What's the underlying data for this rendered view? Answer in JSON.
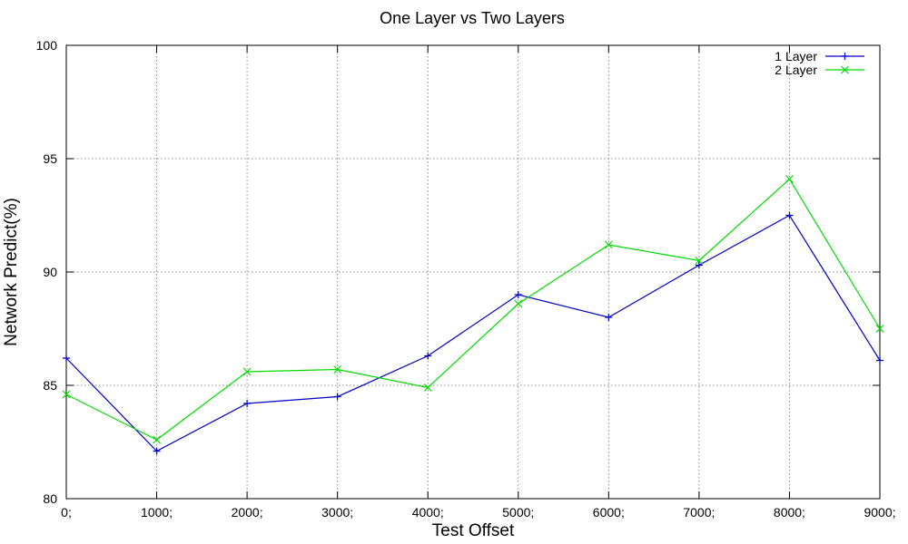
{
  "chart_data": {
    "type": "line",
    "title": "One Layer vs Two Layers",
    "xlabel": "Test Offset",
    "ylabel": "Network Predict(%)",
    "categories": [
      "0;",
      "1000;",
      "2000;",
      "3000;",
      "4000;",
      "5000;",
      "6000;",
      "7000;",
      "8000;",
      "9000;"
    ],
    "ylim": [
      80,
      100
    ],
    "yticks": [
      80,
      85,
      90,
      95,
      100
    ],
    "grid": true,
    "legend_position": "top-right",
    "series": [
      {
        "name": "1 Layer",
        "color": "#0000c8",
        "marker": "plus",
        "values": [
          86.2,
          82.1,
          84.2,
          84.5,
          86.3,
          89.0,
          88.0,
          90.3,
          92.5,
          86.1
        ]
      },
      {
        "name": "2 Layer",
        "color": "#00dc00",
        "marker": "cross",
        "values": [
          84.6,
          82.6,
          85.6,
          85.7,
          84.9,
          88.6,
          91.2,
          90.5,
          94.1,
          87.5
        ]
      }
    ]
  }
}
